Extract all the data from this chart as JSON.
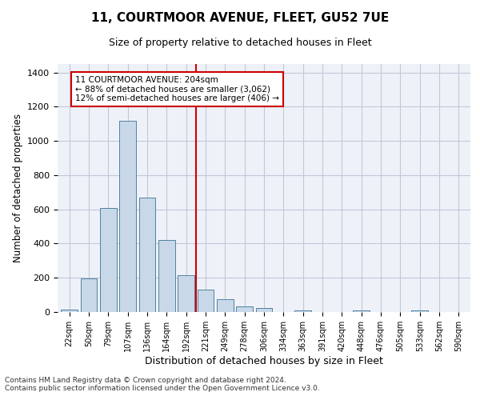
{
  "title_line1": "11, COURTMOOR AVENUE, FLEET, GU52 7UE",
  "title_line2": "Size of property relative to detached houses in Fleet",
  "xlabel": "Distribution of detached houses by size in Fleet",
  "ylabel": "Number of detached properties",
  "categories": [
    "22sqm",
    "50sqm",
    "79sqm",
    "107sqm",
    "136sqm",
    "164sqm",
    "192sqm",
    "221sqm",
    "249sqm",
    "278sqm",
    "306sqm",
    "334sqm",
    "363sqm",
    "391sqm",
    "420sqm",
    "448sqm",
    "476sqm",
    "505sqm",
    "533sqm",
    "562sqm",
    "590sqm"
  ],
  "values": [
    15,
    195,
    610,
    1120,
    670,
    420,
    215,
    130,
    75,
    35,
    25,
    0,
    10,
    0,
    0,
    10,
    0,
    0,
    10,
    0,
    0
  ],
  "bar_color": "#c8d8e8",
  "bar_edge_color": "#5080a0",
  "grid_color": "#c0c8d8",
  "background_color": "#eef2f8",
  "vline_color": "#cc0000",
  "annotation_text": "11 COURTMOOR AVENUE: 204sqm\n← 88% of detached houses are smaller (3,062)\n12% of semi-detached houses are larger (406) →",
  "annotation_box_color": "#ffffff",
  "annotation_box_edge": "#cc0000",
  "footnote1": "Contains HM Land Registry data © Crown copyright and database right 2024.",
  "footnote2": "Contains public sector information licensed under the Open Government Licence v3.0.",
  "ylim": [
    0,
    1450
  ],
  "yticks": [
    0,
    200,
    400,
    600,
    800,
    1000,
    1200,
    1400
  ]
}
